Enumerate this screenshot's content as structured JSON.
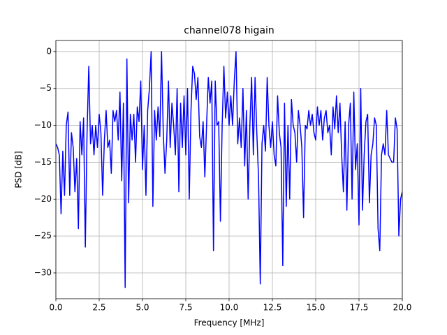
{
  "chart_data": {
    "type": "line",
    "title": "channel078 higain",
    "x_label": "Frequency [MHz]",
    "y_label": "PSD [dB]",
    "x": [
      0,
      0.1,
      0.2,
      0.3,
      0.4,
      0.5,
      0.6,
      0.7,
      0.8,
      0.9,
      1,
      1.1,
      1.2,
      1.3,
      1.4,
      1.5,
      1.6,
      1.7,
      1.8,
      1.9,
      2,
      2.1,
      2.2,
      2.3,
      2.4,
      2.5,
      2.6,
      2.7,
      2.8,
      2.9,
      3,
      3.1,
      3.2,
      3.3,
      3.4,
      3.5,
      3.6,
      3.7,
      3.8,
      3.9,
      4,
      4.1,
      4.2,
      4.3,
      4.4,
      4.5,
      4.6,
      4.7,
      4.8,
      4.9,
      5,
      5.1,
      5.2,
      5.3,
      5.4,
      5.5,
      5.6,
      5.7,
      5.8,
      5.9,
      6,
      6.1,
      6.2,
      6.3,
      6.4,
      6.5,
      6.6,
      6.7,
      6.8,
      6.9,
      7,
      7.1,
      7.2,
      7.3,
      7.4,
      7.5,
      7.6,
      7.7,
      7.8,
      7.9,
      8,
      8.1,
      8.2,
      8.3,
      8.4,
      8.5,
      8.6,
      8.7,
      8.8,
      8.9,
      9,
      9.1,
      9.2,
      9.3,
      9.4,
      9.5,
      9.6,
      9.7,
      9.8,
      9.9,
      10,
      10.1,
      10.2,
      10.3,
      10.4,
      10.5,
      10.6,
      10.7,
      10.8,
      10.9,
      11,
      11.1,
      11.2,
      11.3,
      11.4,
      11.5,
      11.6,
      11.7,
      11.8,
      11.9,
      12,
      12.1,
      12.2,
      12.3,
      12.4,
      12.5,
      12.6,
      12.7,
      12.8,
      12.9,
      13,
      13.1,
      13.2,
      13.3,
      13.4,
      13.5,
      13.6,
      13.7,
      13.8,
      13.9,
      14,
      14.1,
      14.2,
      14.3,
      14.4,
      14.5,
      14.6,
      14.7,
      14.8,
      14.9,
      15,
      15.1,
      15.2,
      15.3,
      15.4,
      15.5,
      15.6,
      15.7,
      15.8,
      15.9,
      16,
      16.1,
      16.2,
      16.3,
      16.4,
      16.5,
      16.6,
      16.7,
      16.8,
      16.9,
      17,
      17.1,
      17.2,
      17.3,
      17.4,
      17.5,
      17.6,
      17.7,
      17.8,
      17.9,
      18,
      18.1,
      18.2,
      18.3,
      18.4,
      18.5,
      18.6,
      18.7,
      18.8,
      18.9,
      19,
      19.1,
      19.2,
      19.3,
      19.4,
      19.5,
      19.6,
      19.7,
      19.8,
      19.9,
      20
    ],
    "series": [
      {
        "color": "#0000ff",
        "values": [
          -12.5,
          -13,
          -14,
          -22,
          -13.5,
          -19.5,
          -10,
          -8.2,
          -19.5,
          -11,
          -13,
          -19,
          -14.5,
          -24,
          -9.5,
          -14,
          -9,
          -26.5,
          -11,
          -2,
          -12.5,
          -10,
          -14,
          -10,
          -13,
          -8.5,
          -11,
          -19.5,
          -12,
          -8,
          -13,
          -12,
          -16.5,
          -8,
          -9.5,
          -8,
          -12,
          -5.5,
          -17.5,
          -7,
          -32,
          -1,
          -20.5,
          -8.5,
          -12,
          -8.5,
          -15,
          -7.5,
          -9.5,
          -4,
          -16,
          -10,
          -19.5,
          -8,
          -5,
          0,
          -21,
          -8,
          -12,
          -7.5,
          -11.5,
          0,
          -11,
          -16.5,
          -12,
          -4,
          -13,
          -7,
          -10,
          -14,
          -5,
          -19,
          -7,
          -13,
          -6,
          -14,
          -5,
          -20,
          -8,
          -2,
          -3,
          -6.5,
          -3.5,
          -11.5,
          -13,
          -9.5,
          -17,
          -10,
          -3.5,
          -7,
          -4,
          -27,
          -4,
          -10,
          -9.5,
          -23,
          -10,
          -2,
          -9,
          -5.5,
          -10,
          -6,
          -10,
          -4,
          0,
          -12.5,
          -9,
          -13,
          -5,
          -15.5,
          -8,
          -20,
          -10,
          -3.5,
          -14,
          -3.5,
          -11,
          -17,
          -31.5,
          -12.5,
          -10,
          -13.5,
          -3.5,
          -10,
          -13,
          -9.5,
          -14,
          -15.5,
          -6,
          -11,
          -13,
          -29,
          -7,
          -21,
          -10,
          -20,
          -6.5,
          -10,
          -11,
          -15,
          -8,
          -10,
          -13,
          -22.5,
          -10,
          -10.5,
          -8,
          -10,
          -8.5,
          -11,
          -12,
          -7.5,
          -10,
          -8,
          -12,
          -9,
          -8,
          -11,
          -10,
          -14,
          -7.5,
          -10.5,
          -6,
          -11,
          -7,
          -14,
          -19,
          -9.5,
          -21.5,
          -10,
          -7,
          -20,
          -5.5,
          -16,
          -12.5,
          -23.5,
          -5,
          -21.5,
          -14,
          -9.5,
          -8.5,
          -20.5,
          -14,
          -12.5,
          -9,
          -10,
          -24,
          -27,
          -14,
          -12.5,
          -14,
          -8,
          -14,
          -14.5,
          -15,
          -15,
          -9,
          -10.5,
          -25,
          -20,
          -19
        ]
      }
    ],
    "xlim": [
      0,
      20
    ],
    "xticks": [
      {
        "value": 0,
        "label": "0.0"
      },
      {
        "value": 2.5,
        "label": "2.5"
      },
      {
        "value": 5,
        "label": "5.0"
      },
      {
        "value": 7.5,
        "label": "7.5"
      },
      {
        "value": 10,
        "label": "10.0"
      },
      {
        "value": 12.5,
        "label": "12.5"
      },
      {
        "value": 15,
        "label": "15.0"
      },
      {
        "value": 17.5,
        "label": "17.5"
      },
      {
        "value": 20,
        "label": "20.0"
      }
    ],
    "ylim": [
      -33.5,
      1.5
    ],
    "yticks": [
      {
        "value": -30,
        "label": "−30"
      },
      {
        "value": -25,
        "label": "−25"
      },
      {
        "value": -20,
        "label": "−20"
      },
      {
        "value": -15,
        "label": "−15"
      },
      {
        "value": -10,
        "label": "−10"
      },
      {
        "value": -5,
        "label": "−5"
      },
      0
    ],
    "grid": true
  }
}
